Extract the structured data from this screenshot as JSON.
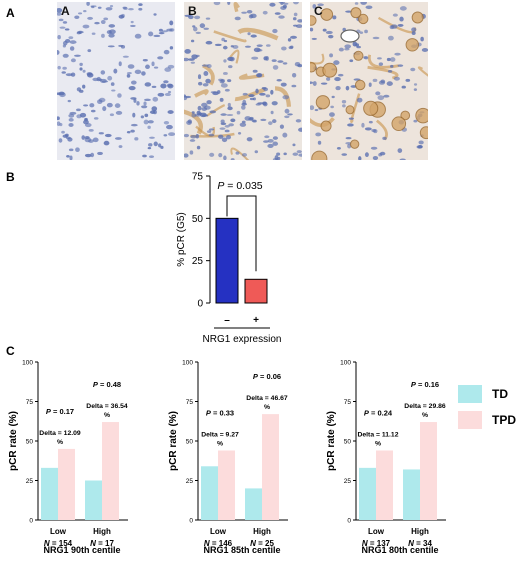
{
  "panel_labels": {
    "a_row": "A",
    "b_row": "B",
    "c_row": "C"
  },
  "images": [
    {
      "label": "A",
      "stain": "negative"
    },
    {
      "label": "B",
      "stain": "stromal positive"
    },
    {
      "label": "C",
      "stain": "tumor positive"
    }
  ],
  "colors": {
    "neg_bar": "#2531c2",
    "pos_bar": "#ef5a57",
    "td": "#aee9ec",
    "tpd": "#fcdcdc",
    "stain_blue": "#5a6fb0",
    "stain_brown": "#c8924a"
  },
  "chart_data": [
    {
      "id": "B",
      "type": "bar",
      "categories": [
        "–",
        "+"
      ],
      "values": [
        50,
        14
      ],
      "ylabel": "% pCR (G5)",
      "xlabel": "NRG1 expression",
      "yticks": [
        0,
        25,
        50,
        75
      ],
      "ylim": [
        0,
        75
      ],
      "annotation": "P = 0.035",
      "grid": false
    },
    {
      "id": "C1",
      "type": "bar",
      "title": "NRG1 90th centile",
      "ylabel": "pCR rate (%)",
      "yticks": [
        0,
        25,
        50,
        75,
        100
      ],
      "ylim": [
        0,
        100
      ],
      "groups": [
        {
          "label": "Low",
          "n": "N = 154",
          "delta": [
            "Delta = 12.09",
            "%"
          ],
          "p": "P = 0.17"
        },
        {
          "label": "High",
          "n": "N = 17",
          "delta": [
            "Delta = 36.54",
            "%"
          ],
          "p": "P = 0.48"
        }
      ],
      "series": [
        {
          "name": "TD",
          "values": [
            33,
            25
          ]
        },
        {
          "name": "TPD",
          "values": [
            45,
            62
          ]
        }
      ]
    },
    {
      "id": "C2",
      "type": "bar",
      "title": "NRG1 85th centile",
      "ylabel": "pCR rate (%)",
      "yticks": [
        0,
        25,
        50,
        75,
        100
      ],
      "ylim": [
        0,
        100
      ],
      "groups": [
        {
          "label": "Low",
          "n": "N = 146",
          "delta": [
            "Delta = 9.27",
            "%"
          ],
          "p": "P = 0.33"
        },
        {
          "label": "High",
          "n": "N = 25",
          "delta": [
            "Delta = 46.67",
            "%"
          ],
          "p": "P = 0.06"
        }
      ],
      "series": [
        {
          "name": "TD",
          "values": [
            34,
            20
          ]
        },
        {
          "name": "TPD",
          "values": [
            44,
            67
          ]
        }
      ]
    },
    {
      "id": "C3",
      "type": "bar",
      "title": "NRG1 80th centile",
      "ylabel": "pCR rate (%)",
      "yticks": [
        0,
        25,
        50,
        75,
        100
      ],
      "ylim": [
        0,
        100
      ],
      "groups": [
        {
          "label": "Low",
          "n": "N = 137",
          "delta": [
            "Delta = 11.12",
            "%"
          ],
          "p": "P = 0.24"
        },
        {
          "label": "High",
          "n": "N = 34",
          "delta": [
            "Delta = 29.86",
            "%"
          ],
          "p": "P = 0.16"
        }
      ],
      "series": [
        {
          "name": "TD",
          "values": [
            33,
            32
          ]
        },
        {
          "name": "TPD",
          "values": [
            44,
            62
          ]
        }
      ]
    }
  ],
  "legend": [
    {
      "name": "TD",
      "color": "#aee9ec"
    },
    {
      "name": "TPD",
      "color": "#fcdcdc"
    }
  ]
}
